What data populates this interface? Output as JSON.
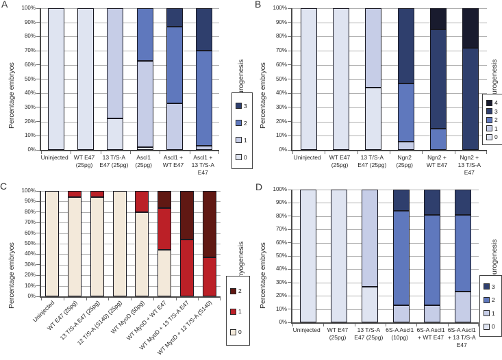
{
  "figure": {
    "background": "#ffffff",
    "description": "Four stacked bar chart panels scoring embryo phenotypes"
  },
  "chart_data": [
    {
      "panel": "A",
      "type": "bar",
      "stacked": true,
      "ylabel": "Percentage embryos",
      "right_axis_label": "Extent of neurogenesis",
      "ylim": [
        0,
        100
      ],
      "grid": true,
      "legend_position": "right",
      "yticks": [
        "0%",
        "10%",
        "20%",
        "30%",
        "40%",
        "50%",
        "60%",
        "70%",
        "80%",
        "90%",
        "100%"
      ],
      "categories": [
        "Uninjected",
        "WT E47 (25pg)",
        "13 T/S-A E47 (25pg)",
        "Ascl1 (25pg)",
        "Ascl1 + WT E47",
        "Ascl1 + 13 T/S-A E47"
      ],
      "category_lines": [
        [
          "Uninjected"
        ],
        [
          "WT E47",
          "(25pg)"
        ],
        [
          "13 T/S-A",
          "E47 (25pg)"
        ],
        [
          "Ascl1",
          "(25pg)"
        ],
        [
          "Ascl1  +",
          "WT E47"
        ],
        [
          "Ascl1  +",
          "13 T/S-A",
          "E47"
        ]
      ],
      "series": [
        {
          "name": "0",
          "color": "#dfe4f1",
          "values": [
            100,
            100,
            22,
            2,
            0,
            0
          ]
        },
        {
          "name": "1",
          "color": "#c6cde7",
          "values": [
            0,
            0,
            78,
            61,
            33,
            3
          ]
        },
        {
          "name": "2",
          "color": "#5f78bd",
          "values": [
            0,
            0,
            0,
            37,
            54,
            67
          ]
        },
        {
          "name": "3",
          "color": "#2f3f6d",
          "values": [
            0,
            0,
            0,
            0,
            13,
            30
          ]
        }
      ],
      "legend": [
        "3",
        "2",
        "1",
        "0"
      ]
    },
    {
      "panel": "B",
      "type": "bar",
      "stacked": true,
      "ylabel": "Percentage embryos",
      "right_axis_label": "Extent of neurogenesis",
      "ylim": [
        0,
        100
      ],
      "grid": true,
      "legend_position": "right",
      "yticks": [
        "0%",
        "10%",
        "20%",
        "30%",
        "40%",
        "50%",
        "60%",
        "70%",
        "80%",
        "90%",
        "100%"
      ],
      "categories": [
        "Uninjected",
        "WT E47 (25pg)",
        "13 T/S-A E47 (25pg)",
        "Ngn2 (25pg)",
        "Ngn2 + WT E47",
        "Ngn2 + 13 T/S-A E47"
      ],
      "category_lines": [
        [
          "Uninjected"
        ],
        [
          "WT E47",
          "(25pg)"
        ],
        [
          "13 T/S-A",
          "E47 (25pg)"
        ],
        [
          "Ngn2",
          "(25pg)"
        ],
        [
          "Ngn2 +",
          "WT E47"
        ],
        [
          "Ngn2 +",
          "13 T/S-A",
          "E47"
        ]
      ],
      "series": [
        {
          "name": "0",
          "color": "#dfe4f1",
          "values": [
            100,
            100,
            44,
            0,
            0,
            0
          ]
        },
        {
          "name": "1",
          "color": "#c6cde7",
          "values": [
            0,
            0,
            56,
            6,
            0,
            0
          ]
        },
        {
          "name": "2",
          "color": "#5f78bd",
          "values": [
            0,
            0,
            0,
            41,
            15,
            0
          ]
        },
        {
          "name": "3",
          "color": "#2f3f6d",
          "values": [
            0,
            0,
            0,
            53,
            70,
            72
          ]
        },
        {
          "name": "4",
          "color": "#191b2e",
          "values": [
            0,
            0,
            0,
            0,
            15,
            28
          ]
        }
      ],
      "legend": [
        "4",
        "3",
        "2",
        "1",
        "0"
      ]
    },
    {
      "panel": "C",
      "type": "bar",
      "stacked": true,
      "ylabel": "Percentage embryos",
      "right_axis_label": "Extent of myogenesis",
      "ylim": [
        0,
        100
      ],
      "grid": true,
      "legend_position": "right",
      "yticks": [
        "0%",
        "10%",
        "20%",
        "30%",
        "40%",
        "50%",
        "60%",
        "70%",
        "80%",
        "90%",
        "100%"
      ],
      "categories": [
        "Uninjected",
        "WT E47 (25pg)",
        "13 T/S-A E47 (25pg)",
        "12 T/S-A (S140) (25pg)",
        "WT MyoD (50pg)",
        "WT MyoD + WT E47",
        "WT MyoD + 13 T/S-A E47",
        "WT MyoD + 12 T/S-A (S140)"
      ],
      "category_lines": [
        [
          "Uninjected"
        ],
        [
          "WT E47 (25pg)"
        ],
        [
          "13 T/S-A E47 (25pg)"
        ],
        [
          "12 T/S-A (S140) (25pg)"
        ],
        [
          "WT MyoD (50pg)"
        ],
        [
          "WT MyoD + WT E47"
        ],
        [
          "WT MyoD + 13 T/S-A E47"
        ],
        [
          "WT MyoD + 12 T/S-A (S140)"
        ]
      ],
      "series": [
        {
          "name": "0",
          "color": "#f3e9da",
          "values": [
            100,
            94,
            94,
            100,
            80,
            44,
            0,
            0
          ]
        },
        {
          "name": "1",
          "color": "#bb2027",
          "values": [
            0,
            6,
            6,
            0,
            20,
            40,
            54,
            37
          ]
        },
        {
          "name": "2",
          "color": "#601813",
          "values": [
            0,
            0,
            0,
            0,
            0,
            16,
            46,
            63
          ]
        }
      ],
      "legend": [
        "2",
        "1",
        "0"
      ]
    },
    {
      "panel": "D",
      "type": "bar",
      "stacked": true,
      "ylabel": "Percentage embryos",
      "right_axis_label": "Extent of neurogenesis",
      "ylim": [
        0,
        100
      ],
      "grid": true,
      "legend_position": "right",
      "yticks": [
        "0%",
        "10%",
        "20%",
        "30%",
        "40%",
        "50%",
        "60%",
        "70%",
        "80%",
        "90%",
        "100%"
      ],
      "categories": [
        "Uninjected",
        "WT E47 (25pg)",
        "13 T/S-A E47 (25pg)",
        "6S-A Ascl1 (10pg)",
        "6S-A Ascl1 + WT E47",
        "6S-A Ascl1 + 13 T/S-A E47"
      ],
      "category_lines": [
        [
          "Uninjected"
        ],
        [
          "WT E47",
          "(25pg)"
        ],
        [
          "13 T/S-A",
          "E47 (25pg)"
        ],
        [
          "6S-A Ascl1",
          "(10pg)"
        ],
        [
          "6S-A Ascl1",
          "+ WT E47"
        ],
        [
          "6S-A Ascl1",
          "+ 13 T/S-A",
          "E47"
        ]
      ],
      "series": [
        {
          "name": "0",
          "color": "#dfe4f1",
          "values": [
            100,
            100,
            27,
            0,
            0,
            0
          ]
        },
        {
          "name": "1",
          "color": "#c6cde7",
          "values": [
            0,
            0,
            73,
            13,
            13,
            23
          ]
        },
        {
          "name": "2",
          "color": "#5f78bd",
          "values": [
            0,
            0,
            0,
            71,
            68,
            58
          ]
        },
        {
          "name": "3",
          "color": "#2f3f6d",
          "values": [
            0,
            0,
            0,
            16,
            19,
            19
          ]
        }
      ],
      "legend": [
        "3",
        "2",
        "1",
        "0"
      ]
    }
  ]
}
